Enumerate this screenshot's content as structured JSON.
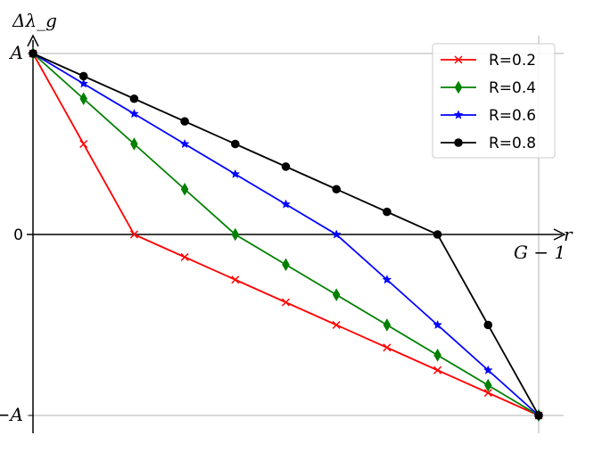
{
  "chart_data": {
    "type": "line",
    "xlabel": "r",
    "ylabel": "Δλ_g",
    "x_end_label": "G − 1",
    "yticks": [
      {
        "value": 1,
        "label": "A"
      },
      {
        "value": 0,
        "label": "0"
      },
      {
        "value": -1,
        "label": "−A"
      }
    ],
    "x": [
      0,
      1,
      2,
      3,
      4,
      5,
      6,
      7,
      8,
      9,
      10
    ],
    "xlim": [
      0,
      10
    ],
    "ylim": [
      -1,
      1
    ],
    "grid": "reference lines at y=A, y=−A and x=G−1",
    "legend_position": "top-right",
    "series": [
      {
        "name": "R=0.2",
        "color": "#ff0000",
        "marker": "x",
        "values": [
          1,
          0.5,
          0,
          -0.125,
          -0.25,
          -0.375,
          -0.5,
          -0.625,
          -0.75,
          -0.875,
          -1
        ]
      },
      {
        "name": "R=0.4",
        "color": "#008000",
        "marker": "thin-diamond",
        "values": [
          1,
          0.75,
          0.5,
          0.25,
          0,
          -0.1667,
          -0.3333,
          -0.5,
          -0.6667,
          -0.8333,
          -1
        ]
      },
      {
        "name": "R=0.6",
        "color": "#0000ff",
        "marker": "star",
        "values": [
          1,
          0.8333,
          0.6667,
          0.5,
          0.3333,
          0.1667,
          0,
          -0.25,
          -0.5,
          -0.75,
          -1
        ]
      },
      {
        "name": "R=0.8",
        "color": "#000000",
        "marker": "circle",
        "values": [
          1,
          0.875,
          0.75,
          0.625,
          0.5,
          0.375,
          0.25,
          0.125,
          0,
          -0.5,
          -1
        ]
      }
    ]
  }
}
